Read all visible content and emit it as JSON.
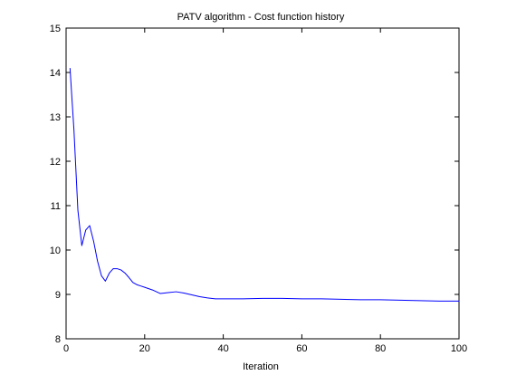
{
  "chart_data": {
    "type": "line",
    "title": "PATV algorithm - Cost function history",
    "xlabel": "Iteration",
    "ylabel": "",
    "xlim": [
      0,
      100
    ],
    "ylim": [
      8,
      15
    ],
    "xticks": [
      0,
      20,
      40,
      60,
      80,
      100
    ],
    "yticks": [
      8,
      9,
      10,
      11,
      12,
      13,
      14,
      15
    ],
    "grid": false,
    "legend": "none",
    "series": [
      {
        "color": "#0000ff",
        "x": [
          1,
          2,
          3,
          4,
          5,
          6,
          7,
          8,
          9,
          10,
          11,
          12,
          13,
          14,
          15,
          16,
          17,
          18,
          19,
          20,
          22,
          24,
          26,
          28,
          30,
          32,
          34,
          36,
          38,
          40,
          45,
          50,
          55,
          60,
          65,
          70,
          75,
          80,
          85,
          90,
          95,
          100
        ],
        "y": [
          14.1,
          12.7,
          10.9,
          10.1,
          10.45,
          10.55,
          10.2,
          9.75,
          9.42,
          9.3,
          9.48,
          9.58,
          9.58,
          9.55,
          9.48,
          9.38,
          9.27,
          9.22,
          9.19,
          9.16,
          9.1,
          9.02,
          9.04,
          9.06,
          9.03,
          8.99,
          8.95,
          8.92,
          8.9,
          8.9,
          8.9,
          8.91,
          8.91,
          8.9,
          8.9,
          8.89,
          8.88,
          8.88,
          8.87,
          8.86,
          8.85,
          8.85
        ]
      }
    ]
  }
}
